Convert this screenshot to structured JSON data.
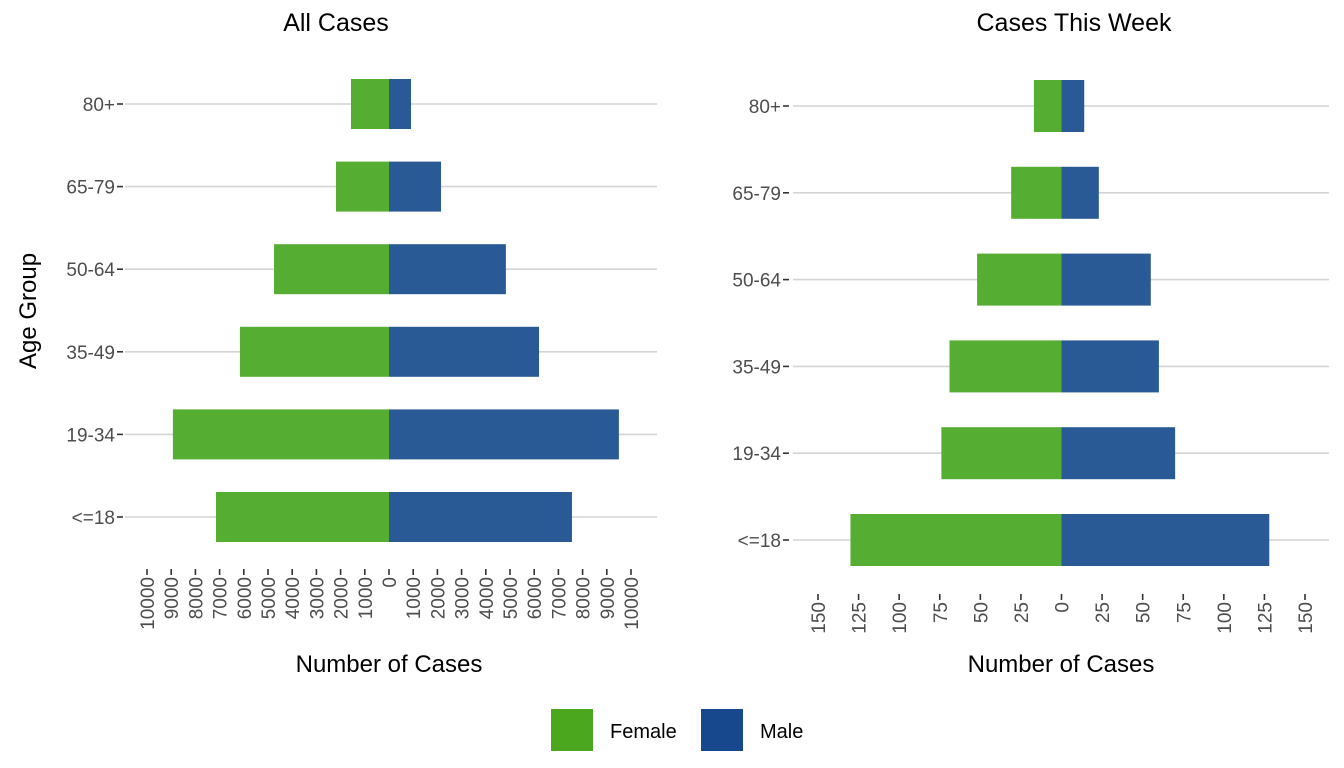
{
  "chart_data": [
    {
      "type": "bar",
      "orientation": "horizontal",
      "stacked": "diverging",
      "title": "All Cases",
      "xlabel": "Number of Cases",
      "ylabel": "Age Group",
      "categories": [
        "<=18",
        "19-34",
        "35-49",
        "50-64",
        "65-79",
        "80+"
      ],
      "series": [
        {
          "name": "Female",
          "values": [
            7150,
            8930,
            6160,
            4750,
            2190,
            1570
          ]
        },
        {
          "name": "Male",
          "values": [
            7560,
            9500,
            6200,
            4830,
            2150,
            910
          ]
        }
      ],
      "xlim": [
        -10000,
        10000
      ],
      "xticks": [
        -10000,
        -9000,
        -8000,
        -7000,
        -6000,
        -5000,
        -4000,
        -3000,
        -2000,
        -1000,
        0,
        1000,
        2000,
        3000,
        4000,
        5000,
        6000,
        7000,
        8000,
        9000,
        10000
      ],
      "xtick_labels": [
        "10000",
        "9000",
        "8000",
        "7000",
        "6000",
        "5000",
        "4000",
        "3000",
        "2000",
        "1000",
        "0",
        "1000",
        "2000",
        "3000",
        "4000",
        "5000",
        "6000",
        "7000",
        "8000",
        "9000",
        "10000"
      ],
      "grid": "horizontal-major"
    },
    {
      "type": "bar",
      "orientation": "horizontal",
      "stacked": "diverging",
      "title": "Cases This Week",
      "xlabel": "Number of Cases",
      "ylabel": "",
      "categories": [
        "<=18",
        "19-34",
        "35-49",
        "50-64",
        "65-79",
        "80+"
      ],
      "series": [
        {
          "name": "Female",
          "values": [
            130,
            74,
            69,
            52,
            31,
            17
          ]
        },
        {
          "name": "Male",
          "values": [
            128,
            70,
            60,
            55,
            23,
            14
          ]
        }
      ],
      "xlim": [
        -150,
        150
      ],
      "xticks": [
        -150,
        -125,
        -100,
        -75,
        -50,
        -25,
        0,
        25,
        50,
        75,
        100,
        125,
        150
      ],
      "xtick_labels": [
        "150",
        "125",
        "100",
        "75",
        "50",
        "25",
        "0",
        "25",
        "50",
        "75",
        "100",
        "125",
        "150"
      ],
      "grid": "horizontal-major"
    }
  ],
  "legend": {
    "position": "bottom",
    "items": [
      {
        "label": "Female",
        "color": "#4aa71e"
      },
      {
        "label": "Male",
        "color": "#17488e"
      }
    ]
  },
  "colors": {
    "female_bar": "#55ad31",
    "male_bar": "#2a5a96"
  }
}
